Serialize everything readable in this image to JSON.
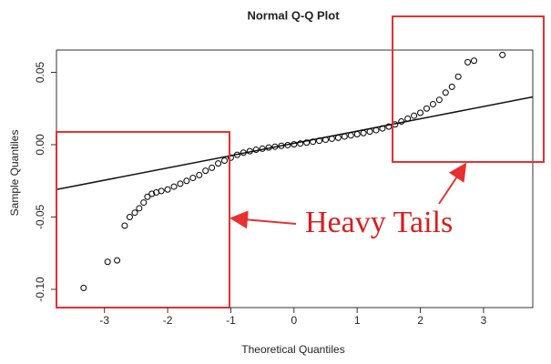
{
  "chart_data": {
    "type": "scatter",
    "title": "Normal Q-Q Plot",
    "x_label": "Theoretical Quantiles",
    "y_label": "Sample Quantiles",
    "annotation": "Heavy Tails",
    "xlim": [
      -3.76,
      3.78
    ],
    "ylim": [
      -0.1126,
      0.0654
    ],
    "xticks": [
      -3,
      -2,
      -1,
      0,
      1,
      2,
      3
    ],
    "yticks": [
      {
        "value": -0.1,
        "label": "-0.10"
      },
      {
        "value": -0.05,
        "label": "-0.05"
      },
      {
        "value": 0,
        "label": "0.00"
      },
      {
        "value": 0.05,
        "label": "0.05"
      }
    ],
    "color": "#000000",
    "x": [
      -3.33,
      -2.95,
      -2.8,
      -2.68,
      -2.6,
      -2.52,
      -2.45,
      -2.38,
      -2.32,
      -2.25,
      -2.18,
      -2.1,
      -2.0,
      -1.9,
      -1.8,
      -1.7,
      -1.6,
      -1.5,
      -1.4,
      -1.3,
      -1.2,
      -1.1,
      -1.0,
      -0.9,
      -0.8,
      -0.7,
      -0.6,
      -0.5,
      -0.4,
      -0.3,
      -0.2,
      -0.1,
      0,
      0.1,
      0.2,
      0.3,
      0.4,
      0.5,
      0.6,
      0.7,
      0.8,
      0.9,
      1.0,
      1.1,
      1.2,
      1.3,
      1.4,
      1.5,
      1.6,
      1.7,
      1.8,
      1.9,
      2.0,
      2.1,
      2.2,
      2.3,
      2.4,
      2.5,
      2.6,
      2.75,
      2.85,
      3.3
    ],
    "values": [
      -0.099,
      -0.081,
      -0.08,
      -0.056,
      -0.05,
      -0.047,
      -0.044,
      -0.04,
      -0.036,
      -0.034,
      -0.033,
      -0.032,
      -0.031,
      -0.029,
      -0.027,
      -0.025,
      -0.023,
      -0.021,
      -0.018,
      -0.016,
      -0.013,
      -0.011,
      -0.009,
      -0.007,
      -0.0055,
      -0.0045,
      -0.0035,
      -0.0028,
      -0.002,
      -0.0014,
      -0.0008,
      -0.0003,
      0.0002,
      0.0008,
      0.0014,
      0.002,
      0.0027,
      0.0034,
      0.0041,
      0.0048,
      0.0056,
      0.0064,
      0.0072,
      0.008,
      0.009,
      0.01,
      0.0112,
      0.0125,
      0.014,
      0.016,
      0.018,
      0.02,
      0.022,
      0.025,
      0.028,
      0.031,
      0.036,
      0.04,
      0.047,
      0.057,
      0.058,
      0.062
    ],
    "reference_line": {
      "x": [
        -3.76,
        3.78
      ],
      "values": [
        -0.031,
        0.033
      ]
    }
  }
}
